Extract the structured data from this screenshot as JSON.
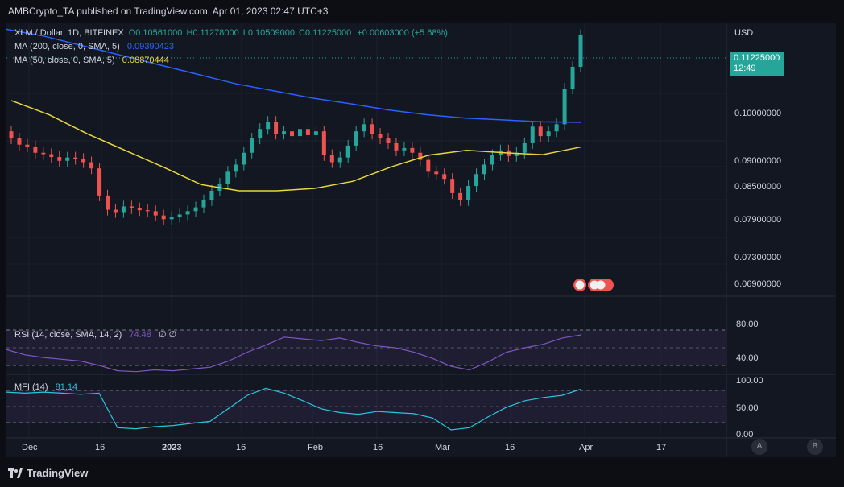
{
  "header": {
    "published": "AMBCrypto_TA published on TradingView.com, Apr 01, 2023 02:47 UTC+3"
  },
  "main_legend": {
    "symbol": "XLM / Dollar, 1D, BITFINEX",
    "open": "O0.10561000",
    "high": "H0.11278000",
    "low": "L0.10509000",
    "close": "C0.11225000",
    "change": "+0.00603000 (+5.68%)",
    "ma200_label": "MA (200, close, 0, SMA, 5)",
    "ma200_value": "0.09390423",
    "ma50_label": "MA (50, close, 0, SMA, 5)",
    "ma50_value": "0.08870444"
  },
  "price_axis": {
    "currency": "USD",
    "ticks": [
      "0.10000000",
      "0.09000000",
      "0.08500000",
      "0.07900000",
      "0.07300000",
      "0.06900000"
    ],
    "last_price": "0.11225000",
    "countdown": "12:49"
  },
  "rsi": {
    "label": "RSI (14, close, SMA, 14, 2)",
    "value": "74.48",
    "extra": "∅ ∅",
    "ticks": [
      "80.00",
      "40.00"
    ]
  },
  "mfi": {
    "label": "MFI (14)",
    "value": "81.14",
    "ticks": [
      "100.00",
      "50.00",
      "0.00"
    ]
  },
  "time_axis": [
    "Dec",
    "16",
    "2023",
    "16",
    "Feb",
    "16",
    "Mar",
    "16",
    "Apr",
    "17"
  ],
  "footer": {
    "brand": "TradingView",
    "btn_a": "A",
    "btn_b": "B"
  },
  "colors": {
    "up": "#26a69a",
    "down": "#ef5350",
    "ma200": "#2962ff",
    "ma50": "#e8d73a",
    "rsi": "#7e57c2",
    "mfi": "#26c6da"
  },
  "chart_data": {
    "type": "candlestick",
    "title": "XLM / Dollar, 1D, BITFINEX",
    "x_labels": [
      "Dec",
      "16",
      "2023",
      "16",
      "Feb",
      "16",
      "Mar",
      "16",
      "Apr",
      "17"
    ],
    "ylim": [
      0.066,
      0.116
    ],
    "close_series": [
      0.0905,
      0.0892,
      0.0888,
      0.0875,
      0.0872,
      0.0866,
      0.0858,
      0.0865,
      0.0862,
      0.0855,
      0.0842,
      0.0785,
      0.0755,
      0.075,
      0.0762,
      0.0758,
      0.0754,
      0.0752,
      0.0743,
      0.0735,
      0.074,
      0.0745,
      0.0752,
      0.076,
      0.0775,
      0.0795,
      0.081,
      0.0835,
      0.085,
      0.0875,
      0.0905,
      0.0925,
      0.094,
      0.0915,
      0.092,
      0.091,
      0.0925,
      0.0912,
      0.092,
      0.087,
      0.0855,
      0.0865,
      0.089,
      0.092,
      0.0935,
      0.0915,
      0.0905,
      0.0895,
      0.088,
      0.0885,
      0.0875,
      0.086,
      0.0835,
      0.083,
      0.082,
      0.079,
      0.0775,
      0.0805,
      0.083,
      0.085,
      0.087,
      0.088,
      0.0868,
      0.0875,
      0.0895,
      0.093,
      0.091,
      0.092,
      0.0935,
      0.101,
      0.1056,
      0.11225
    ],
    "ma200": [
      0.1135,
      0.112,
      0.11,
      0.108,
      0.106,
      0.104,
      0.102,
      0.1005,
      0.099,
      0.0978,
      0.0965,
      0.0955,
      0.0948,
      0.0944,
      0.094,
      0.0939
    ],
    "ma50": [
      0.0985,
      0.0955,
      0.0915,
      0.088,
      0.0845,
      0.0808,
      0.0795,
      0.0795,
      0.08,
      0.0815,
      0.0845,
      0.087,
      0.088,
      0.0875,
      0.0871,
      0.0887
    ],
    "rsi": [
      58,
      52,
      49,
      47,
      45,
      40,
      34,
      33,
      35,
      34,
      36,
      38,
      45,
      55,
      63,
      72,
      70,
      68,
      71,
      66,
      62,
      60,
      55,
      48,
      39,
      35,
      44,
      55,
      60,
      64,
      71,
      74.48
    ],
    "mfi": [
      76,
      74,
      76,
      74,
      72,
      74,
      10,
      8,
      12,
      14,
      18,
      22,
      46,
      70,
      83,
      74,
      60,
      45,
      38,
      35,
      40,
      38,
      36,
      28,
      6,
      10,
      30,
      48,
      60,
      66,
      70,
      81.14
    ]
  }
}
